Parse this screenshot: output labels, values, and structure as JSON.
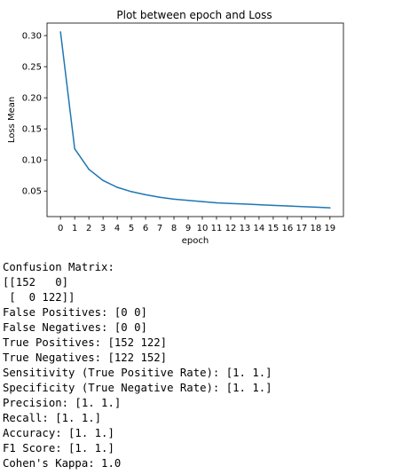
{
  "chart_data": {
    "type": "line",
    "title": "Plot between epoch and Loss",
    "xlabel": "epoch",
    "ylabel": "Loss Mean",
    "x": [
      0,
      1,
      2,
      3,
      4,
      5,
      6,
      7,
      8,
      9,
      10,
      11,
      12,
      13,
      14,
      15,
      16,
      17,
      18,
      19
    ],
    "series": [
      {
        "values": [
          0.306,
          0.118,
          0.085,
          0.067,
          0.056,
          0.049,
          0.044,
          0.04,
          0.037,
          0.035,
          0.033,
          0.031,
          0.03,
          0.029,
          0.028,
          0.027,
          0.026,
          0.025,
          0.024,
          0.023
        ]
      }
    ],
    "xticks": [
      0,
      1,
      2,
      3,
      4,
      5,
      6,
      7,
      8,
      9,
      10,
      11,
      12,
      13,
      14,
      15,
      16,
      17,
      18,
      19
    ],
    "yticks": [
      0.05,
      0.1,
      0.15,
      0.2,
      0.25,
      0.3
    ],
    "ytick_labels": [
      "0.05",
      "0.10",
      "0.15",
      "0.20",
      "0.25",
      "0.30"
    ],
    "xlim": [
      -0.95,
      19.95
    ],
    "ylim": [
      0.0089,
      0.3201
    ],
    "line_color": "#1f77b4",
    "grid": false
  },
  "output": [
    "Confusion Matrix:",
    "[[152   0]",
    " [  0 122]]",
    "False Positives: [0 0]",
    "False Negatives: [0 0]",
    "True Positives: [152 122]",
    "True Negatives: [122 152]",
    "Sensitivity (True Positive Rate): [1. 1.]",
    "Specificity (True Negative Rate): [1. 1.]",
    "Precision: [1. 1.]",
    "Recall: [1. 1.]",
    "Accuracy: [1. 1.]",
    "F1 Score: [1. 1.]",
    "Cohen's Kappa: 1.0"
  ]
}
